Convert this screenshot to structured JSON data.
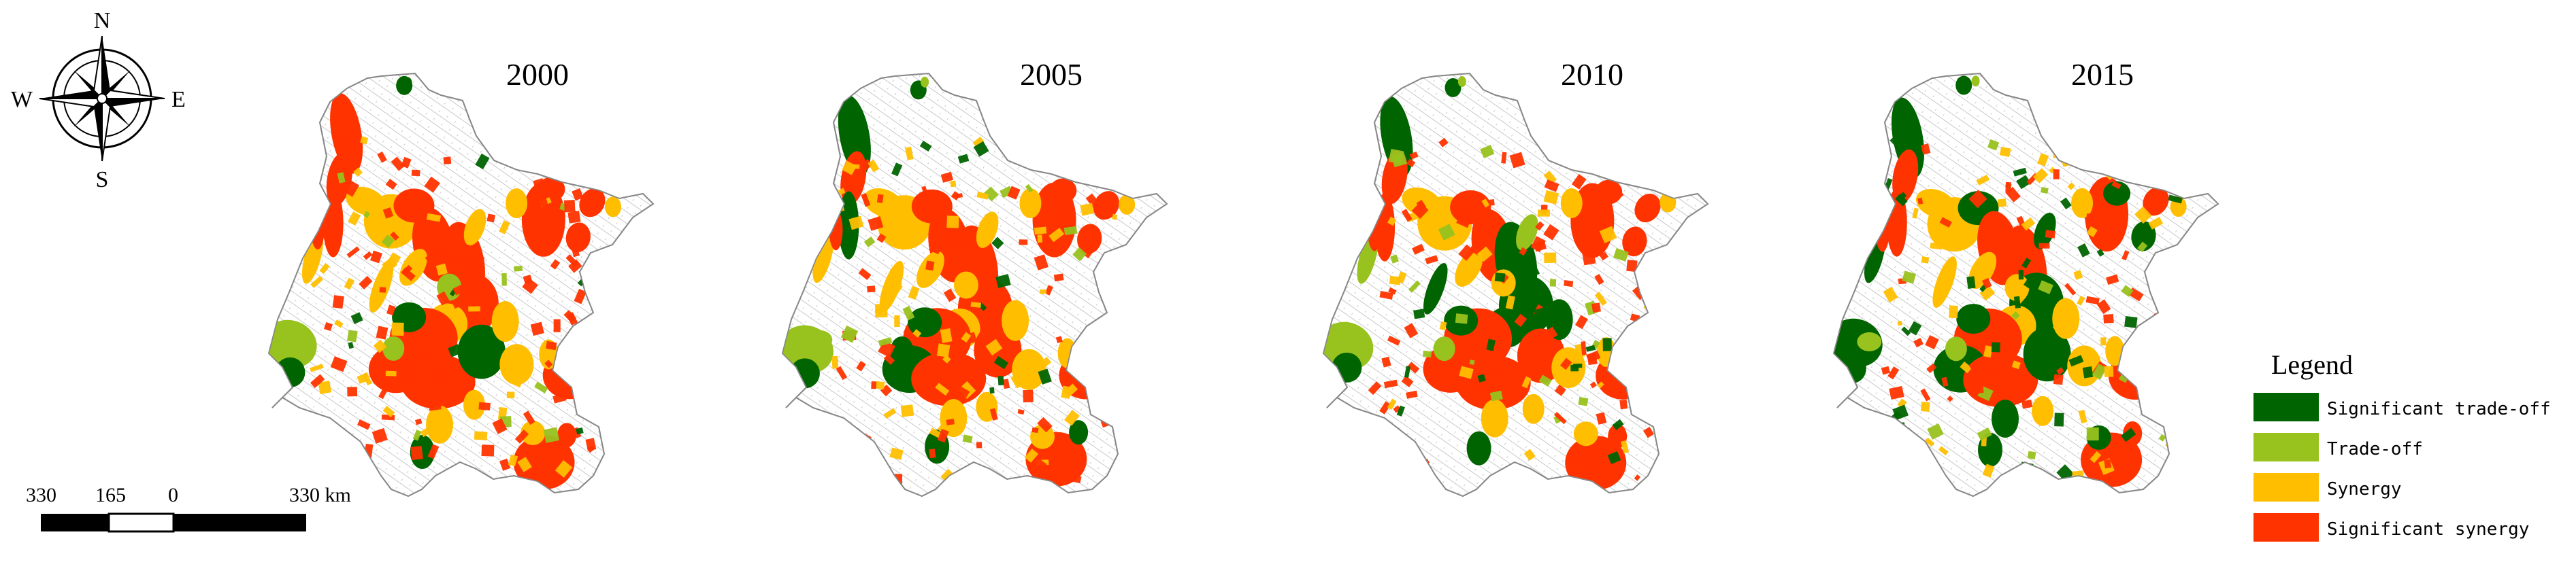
{
  "panels": [
    {
      "year": "2000",
      "mix": {
        "significant_trade_off": 0.06,
        "trade_off": 0.06,
        "synergy": 0.32,
        "significant_synergy": 0.56
      }
    },
    {
      "year": "2005",
      "mix": {
        "significant_trade_off": 0.08,
        "trade_off": 0.07,
        "synergy": 0.32,
        "significant_synergy": 0.53
      }
    },
    {
      "year": "2010",
      "mix": {
        "significant_trade_off": 0.12,
        "trade_off": 0.07,
        "synergy": 0.33,
        "significant_synergy": 0.48
      }
    },
    {
      "year": "2015",
      "mix": {
        "significant_trade_off": 0.22,
        "trade_off": 0.12,
        "synergy": 0.32,
        "significant_synergy": 0.34
      }
    }
  ],
  "compass": {
    "n": "N",
    "s": "S",
    "e": "E",
    "w": "W"
  },
  "scale_bar": {
    "ticks": [
      "330",
      "165",
      "0",
      "330 km"
    ]
  },
  "legend": {
    "title": "Legend",
    "items": [
      {
        "label": "Significant trade-off",
        "color": "#006400"
      },
      {
        "label": "Trade-off",
        "color": "#98c21d"
      },
      {
        "label": "Synergy",
        "color": "#ffbf00"
      },
      {
        "label": "Significant synergy",
        "color": "#ff3300"
      }
    ]
  },
  "colors": {
    "boundary": "#7a7a7a",
    "background": "#ffffff"
  }
}
